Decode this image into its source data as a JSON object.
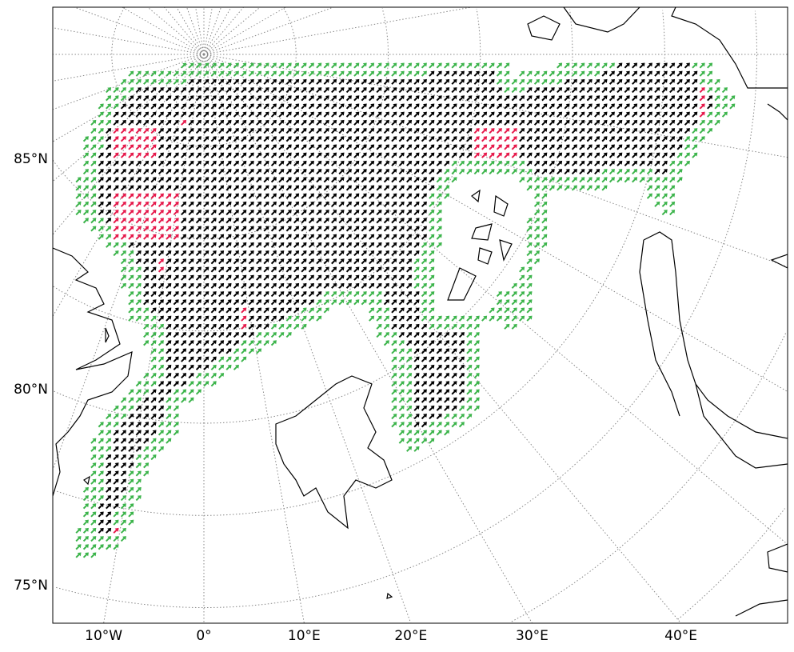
{
  "chart_data": {
    "type": "map",
    "projection": "north polar stereographic",
    "lat_ticks": [
      {
        "value": 85,
        "label": "85°N"
      },
      {
        "value": 80,
        "label": "80°N"
      },
      {
        "value": 75,
        "label": "75°N"
      }
    ],
    "lon_ticks": [
      {
        "value": -10,
        "label": "10°W"
      },
      {
        "value": 0,
        "label": "0°"
      },
      {
        "value": 10,
        "label": "10°E"
      },
      {
        "value": 20,
        "label": "20°E"
      },
      {
        "value": 30,
        "label": "30°E"
      },
      {
        "value": 40,
        "label": "40°E"
      }
    ],
    "grid": true,
    "grid_style": "dotted",
    "vector_field": {
      "mark": "arrow",
      "direction": "northeast",
      "colors": {
        "interior": "#000000",
        "edge": "#3cb44b",
        "flagged": "#e6194b"
      }
    },
    "coastline_color": "#000000"
  }
}
